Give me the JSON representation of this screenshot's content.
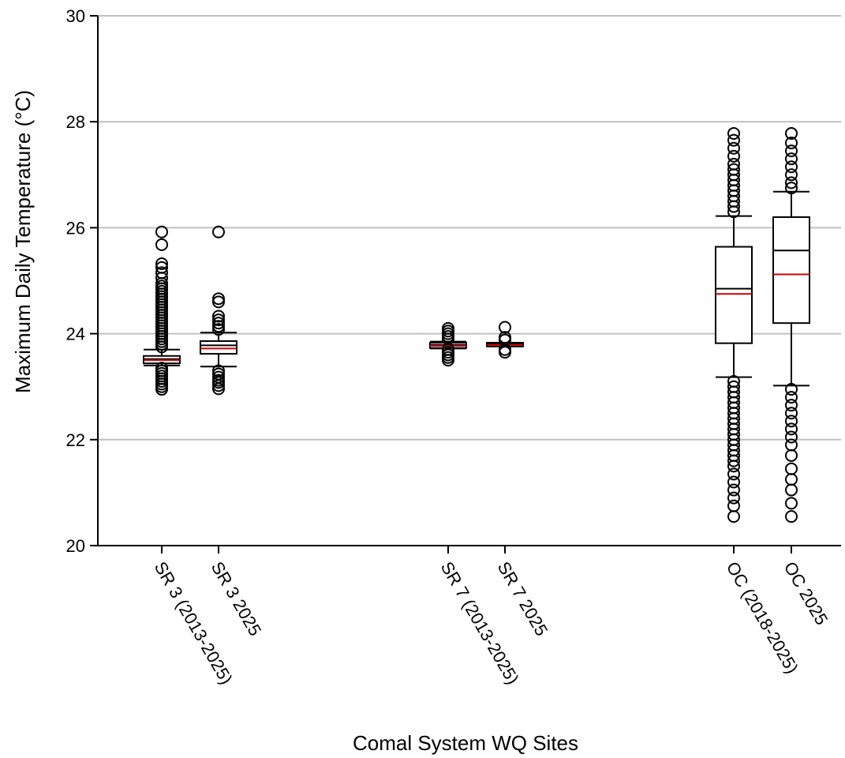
{
  "chart_data": {
    "type": "box",
    "title": "",
    "xlabel": "Comal System WQ Sites",
    "ylabel": "Maximum Daily Temperature (°C)",
    "ylim": [
      20,
      30
    ],
    "yticks": [
      20,
      22,
      24,
      26,
      28,
      30
    ],
    "grid": "horizontal",
    "median_color": "#000000",
    "mean_color": "#cc0000",
    "categories": [
      "SR 3 (2013-2025)",
      "SR 3 2025",
      "SR 7 (2013-2025)",
      "SR 7 2025",
      "OC (2018-2025)",
      "OC 2025"
    ],
    "boxes": [
      {
        "label": "SR 3 (2013-2025)",
        "whisker_low": 23.4,
        "q1": 23.44,
        "median": 23.52,
        "mean": 23.5,
        "q3": 23.58,
        "whisker_high": 23.7,
        "outliers": [
          22.95,
          23.0,
          23.05,
          23.1,
          23.15,
          23.2,
          23.25,
          23.3,
          23.35,
          23.75,
          23.8,
          23.85,
          23.9,
          23.95,
          24.0,
          24.05,
          24.1,
          24.15,
          24.2,
          24.25,
          24.3,
          24.35,
          24.4,
          24.45,
          24.5,
          24.55,
          24.6,
          24.65,
          24.7,
          24.75,
          24.8,
          24.85,
          24.9,
          24.95,
          25.05,
          25.15,
          25.25,
          25.32,
          25.68,
          25.92
        ]
      },
      {
        "label": "SR 3 2025",
        "whisker_low": 23.38,
        "q1": 23.62,
        "median": 23.78,
        "mean": 23.72,
        "q3": 23.86,
        "whisker_high": 24.02,
        "outliers": [
          22.96,
          23.02,
          23.08,
          23.12,
          23.18,
          23.24,
          23.3,
          24.08,
          24.14,
          24.2,
          24.26,
          24.33,
          24.6,
          24.66,
          25.92
        ]
      },
      {
        "label": "SR 7 (2013-2025)",
        "whisker_low": 23.72,
        "q1": 23.73,
        "median": 23.79,
        "mean": 23.77,
        "q3": 23.83,
        "whisker_high": 23.85,
        "outliers": [
          23.5,
          23.55,
          23.6,
          23.65,
          23.7,
          23.9,
          23.95,
          24.0,
          24.05,
          24.1
        ]
      },
      {
        "label": "SR 7 2025",
        "whisker_low": 23.76,
        "q1": 23.76,
        "median": 23.8,
        "mean": 23.79,
        "q3": 23.83,
        "whisker_high": 23.83,
        "outliers": [
          23.65,
          23.7,
          23.88,
          23.93,
          24.12
        ]
      },
      {
        "label": "OC (2018-2025)",
        "whisker_low": 23.18,
        "q1": 23.82,
        "median": 24.85,
        "mean": 24.75,
        "q3": 25.64,
        "whisker_high": 26.22,
        "outliers": [
          20.55,
          20.75,
          20.9,
          21.05,
          21.2,
          21.35,
          21.5,
          21.6,
          21.7,
          21.8,
          21.9,
          22.0,
          22.1,
          22.2,
          22.3,
          22.4,
          22.5,
          22.6,
          22.7,
          22.8,
          22.9,
          23.0,
          23.1,
          26.3,
          26.4,
          26.5,
          26.6,
          26.7,
          26.8,
          26.9,
          27.0,
          27.1,
          27.2,
          27.35,
          27.5,
          27.65,
          27.78
        ]
      },
      {
        "label": "OC 2025",
        "whisker_low": 23.02,
        "q1": 24.2,
        "median": 25.57,
        "mean": 25.12,
        "q3": 26.2,
        "whisker_high": 26.68,
        "outliers": [
          20.55,
          20.8,
          21.05,
          21.25,
          21.45,
          21.7,
          21.9,
          22.05,
          22.2,
          22.35,
          22.5,
          22.65,
          22.8,
          22.95,
          26.75,
          26.85,
          27.0,
          27.15,
          27.3,
          27.45,
          27.6,
          27.78
        ]
      }
    ]
  }
}
